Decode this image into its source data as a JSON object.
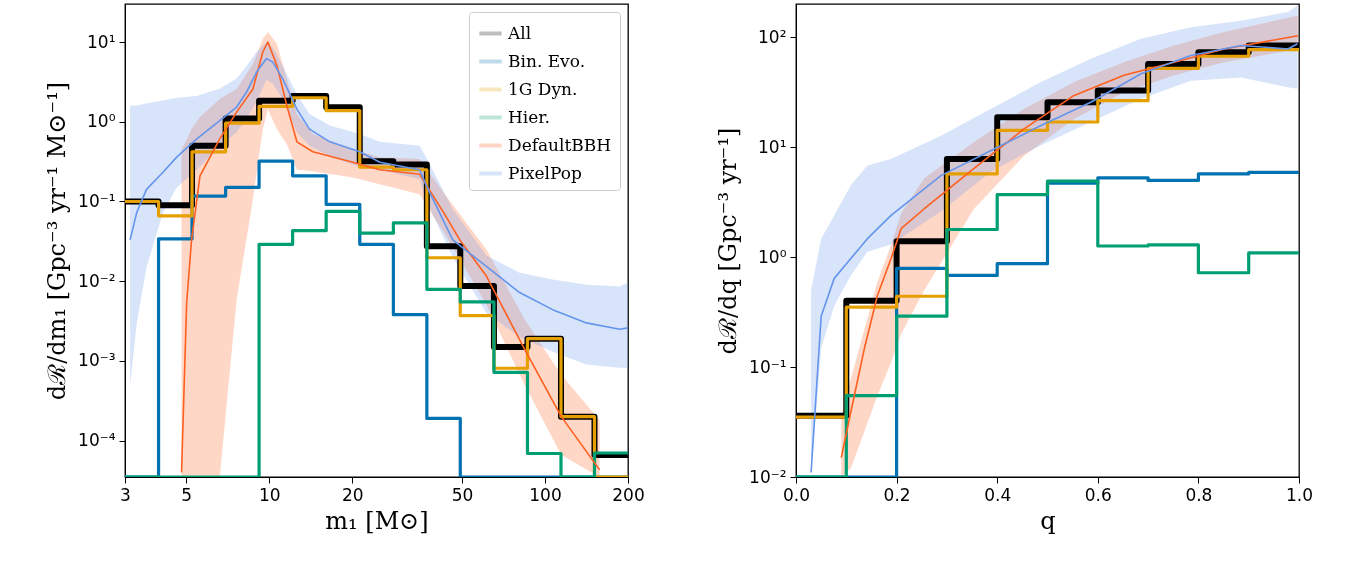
{
  "chart_data": [
    {
      "type": "histogram",
      "xlabel": "m₁ [M⊙]",
      "ylabel": "dℛ/dm₁ [Gpc⁻³ yr⁻¹ M⊙⁻¹]",
      "log": "xy",
      "xlim": [
        3,
        200
      ],
      "ylim": [
        3.5e-05,
        30
      ],
      "xticks": [
        3,
        5,
        10,
        20,
        50,
        100,
        200
      ],
      "yticks": [
        {
          "value": 0.0001,
          "label": "10⁻⁴"
        },
        {
          "value": 0.001,
          "label": "10⁻³"
        },
        {
          "value": 0.01,
          "label": "10⁻²"
        },
        {
          "value": 0.1,
          "label": "10⁻¹"
        },
        {
          "value": 1,
          "label": "10⁰"
        },
        {
          "value": 10,
          "label": "10¹"
        }
      ],
      "legend": "top right",
      "bins": [
        3,
        3.97,
        5.25,
        6.95,
        9.19,
        12.16,
        16.09,
        21.3,
        28.2,
        37.3,
        49.3,
        65.3,
        86.4,
        114.3,
        151.2,
        200
      ],
      "series": [
        {
          "name": "All",
          "color": "#000000",
          "values": [
            0.1,
            0.09,
            0.5,
            1.1,
            1.84,
            2.1,
            1.52,
            0.32,
            0.29,
            0.0275,
            0.0087,
            0.0015,
            0.0019,
            0.0002,
            6.6e-05
          ]
        },
        {
          "name": "Bin. Evo.",
          "color": "#0072b2",
          "values": [
            null,
            0.034,
            0.117,
            0.15,
            0.32,
            0.21,
            0.092,
            0.029,
            0.0038,
            0.00019,
            null,
            null,
            null,
            null,
            null
          ]
        },
        {
          "name": "1G Dyn.",
          "color": "#e69f00",
          "values": [
            0.1,
            0.066,
            0.42,
            0.96,
            1.56,
            2.0,
            1.38,
            0.27,
            0.25,
            0.0197,
            0.0037,
            0.00081,
            0.0019,
            0.0002,
            null
          ]
        },
        {
          "name": "Hier.",
          "color": "#009e73",
          "values": [
            null,
            null,
            null,
            null,
            0.029,
            0.043,
            0.075,
            0.04,
            0.054,
            0.0079,
            0.0055,
            0.00072,
            6.9e-05,
            null,
            7e-05
          ]
        },
        {
          "name": "DefaultBBH",
          "type": "line",
          "color": "#ff5f1f",
          "x": [
            4.81,
            5.02,
            5.23,
            5.61,
            6.62,
            7.62,
            8.73,
            9.48,
            9.89,
            10.66,
            11.59,
            12.6,
            14.4,
            20.1,
            25.2,
            35.1,
            43.3,
            49.1,
            61.3,
            84.4,
            114.6,
            157.8
          ],
          "values": [
            4e-05,
            0.0054,
            0.033,
            0.21,
            0.61,
            1.32,
            2.58,
            7.5,
            10,
            5.1,
            1.59,
            0.56,
            0.42,
            0.31,
            0.25,
            0.22,
            0.069,
            0.033,
            0.0116,
            0.0014,
            0.0002,
            4.3e-05
          ],
          "upper": [
            0.45,
            0.6,
            0.81,
            1.15,
            1.93,
            2.58,
            5.3,
            11,
            13.4,
            9.5,
            3.44,
            1.25,
            0.7,
            0.45,
            0.36,
            0.34,
            0.123,
            0.069,
            0.025,
            0.0033,
            0.00067,
            0.00018
          ],
          "lower": [
            3.5e-05,
            3.5e-05,
            3.5e-05,
            3.5e-05,
            3.5e-05,
            0.0059,
            0.107,
            0.81,
            1.44,
            0.81,
            0.52,
            0.25,
            0.24,
            0.2,
            0.165,
            0.123,
            0.039,
            0.019,
            0.0051,
            0.0005,
            6.6e-05,
            3.5e-05
          ]
        },
        {
          "name": "PixelPop",
          "type": "line",
          "color": "#6495ed",
          "x": [
            3.13,
            3.31,
            3.59,
            4.12,
            4.62,
            5.46,
            6.62,
            7.62,
            8.28,
            9.0,
            9.78,
            10.31,
            11.2,
            12.6,
            14.0,
            16.6,
            21.3,
            25.2,
            35.1,
            37.2,
            46.3,
            61.3,
            80.9,
            106.6,
            141.3,
            186.4,
            200
          ],
          "values": [
            0.033,
            0.073,
            0.142,
            0.233,
            0.36,
            0.61,
            1.03,
            1.53,
            2.36,
            4.2,
            6.2,
            5.6,
            3.44,
            1.44,
            0.81,
            0.56,
            0.42,
            0.31,
            0.25,
            0.157,
            0.033,
            0.0153,
            0.0072,
            0.0044,
            0.003,
            0.0025,
            0.0026
          ],
          "lower": [
            0.0005,
            0.003,
            0.015,
            0.073,
            0.15,
            0.25,
            0.5,
            0.74,
            1.1,
            1.8,
            3.4,
            3.0,
            1.9,
            0.74,
            0.5,
            0.37,
            0.27,
            0.25,
            0.19,
            0.1,
            0.02,
            0.004,
            0.002,
            0.0013,
            0.0009,
            0.00082,
            0.00082
          ],
          "upper": [
            1.59,
            1.6,
            1.7,
            1.85,
            2.0,
            2.1,
            2.6,
            3.5,
            5.0,
            7.5,
            10,
            8.5,
            5.0,
            2.2,
            1.25,
            0.9,
            0.7,
            0.56,
            0.5,
            0.35,
            0.08,
            0.021,
            0.0128,
            0.0105,
            0.009,
            0.0086,
            0.0096
          ]
        }
      ]
    },
    {
      "type": "histogram",
      "xlabel": "q",
      "ylabel": "dℛ/dq [Gpc⁻³ yr⁻¹]",
      "log": "y",
      "xlim": [
        0,
        1
      ],
      "ylim": [
        0.01,
        200
      ],
      "xticks": [
        {
          "value": 0,
          "label": "0.0"
        },
        0.2,
        0.4,
        0.6,
        0.8,
        {
          "value": 1,
          "label": "1.0"
        }
      ],
      "yticks": [
        {
          "value": 0.01,
          "label": "10⁻²"
        },
        {
          "value": 0.1,
          "label": "10⁻¹"
        },
        {
          "value": 1,
          "label": "10⁰"
        },
        {
          "value": 10,
          "label": "10¹"
        },
        {
          "value": 100,
          "label": "10²"
        }
      ],
      "bins": [
        0,
        0.1,
        0.2,
        0.3,
        0.4,
        0.5,
        0.6,
        0.7,
        0.8,
        0.9,
        1
      ],
      "series": [
        {
          "color": "#000000",
          "values": [
            0.036,
            0.4,
            1.39,
            7.8,
            18.7,
            25.6,
            32.7,
            57,
            73,
            84
          ]
        },
        {
          "color": "#0072b2",
          "values": [
            null,
            null,
            0.79,
            0.68,
            0.87,
            4.7,
            5.25,
            4.97,
            5.7,
            5.9
          ]
        },
        {
          "color": "#e69f00",
          "values": [
            0.035,
            0.35,
            0.44,
            5.7,
            14.2,
            16.9,
            26.5,
            52,
            67,
            77
          ]
        },
        {
          "color": "#009e73",
          "values": [
            null,
            0.055,
            0.29,
            1.78,
            3.7,
            4.9,
            1.26,
            1.29,
            0.72,
            1.09
          ]
        },
        {
          "type": "line",
          "color": "#ff5f1f",
          "x": [
            0.09,
            0.109,
            0.136,
            0.162,
            0.189,
            0.209,
            0.255,
            0.354,
            0.454,
            0.553,
            0.652,
            0.752,
            0.851,
            0.998
          ],
          "values": [
            0.015,
            0.039,
            0.148,
            0.45,
            0.97,
            1.81,
            2.75,
            6.4,
            14.7,
            29.5,
            44.9,
            59,
            78,
            103
          ],
          "upper": [
            0.036,
            0.078,
            0.22,
            0.6,
            1.28,
            2.5,
            5.2,
            11.1,
            22.3,
            39,
            59,
            84,
            111,
            157
          ],
          "lower": [
            0.01,
            0.012,
            0.026,
            0.055,
            0.11,
            0.2,
            0.5,
            2.75,
            8.4,
            18,
            31.6,
            44.9,
            59,
            78
          ]
        },
        {
          "type": "line",
          "color": "#6495ed",
          "x": [
            0.03,
            0.05,
            0.076,
            0.109,
            0.142,
            0.189,
            0.288,
            0.388,
            0.487,
            0.586,
            0.686,
            0.785,
            0.885,
            0.978,
            0.997
          ],
          "values": [
            0.011,
            0.29,
            0.64,
            0.97,
            1.47,
            2.39,
            5.5,
            9.3,
            15.7,
            25.6,
            46.4,
            68,
            84,
            78,
            87
          ],
          "lower": [
            0.01,
            0.15,
            0.36,
            0.68,
            1.12,
            1.3,
            2.6,
            6.0,
            10.4,
            16.9,
            27.5,
            40,
            43,
            35,
            34
          ],
          "upper": [
            0.5,
            1.47,
            2.39,
            4.5,
            6.8,
            7.8,
            12.7,
            22.3,
            39,
            63.5,
            96.6,
            123,
            141,
            169,
            194
          ]
        }
      ]
    }
  ]
}
